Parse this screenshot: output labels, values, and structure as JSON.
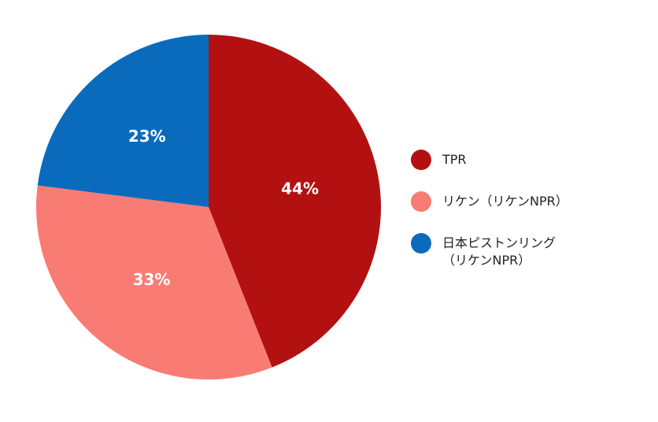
{
  "chart_data": {
    "type": "pie",
    "categories": [
      "TPR",
      "リケン（リケンNPR）",
      "日本ピストンリング（リケンNPR）"
    ],
    "values": [
      44,
      33,
      23
    ],
    "value_labels": [
      "44%",
      "33%",
      "23%"
    ],
    "colors": [
      "#b31111",
      "#f87c74",
      "#0a6bbd"
    ],
    "legend": "right"
  }
}
